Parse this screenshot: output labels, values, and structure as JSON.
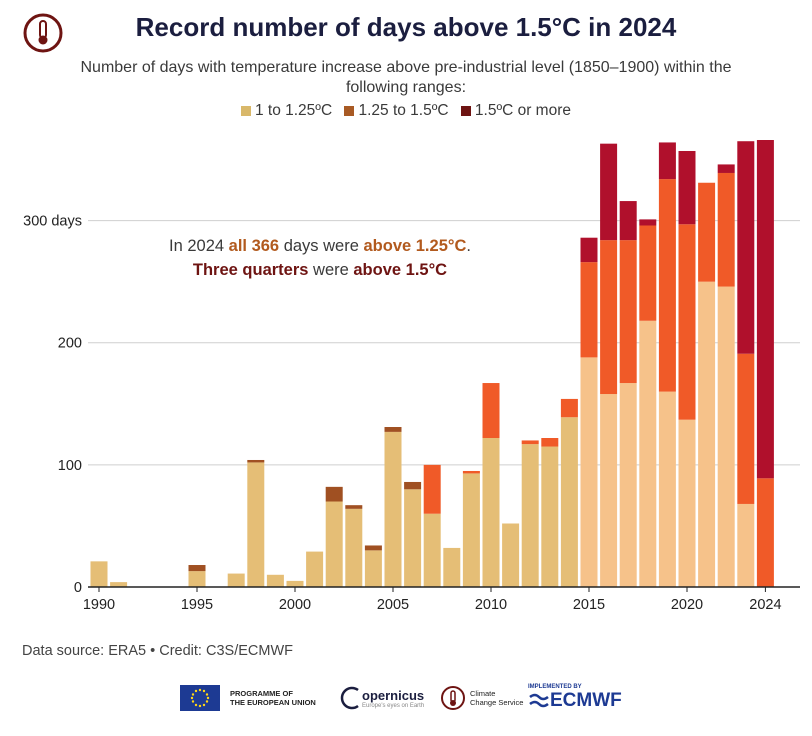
{
  "title": "Record number of days above 1.5°C in 2024",
  "subtitle": "Number of days with temperature increase above pre-industrial level (1850–1900) within the following ranges:",
  "legend": [
    {
      "label": "1 to 1.25ºC",
      "color": "#d9b86a"
    },
    {
      "label": "1.25 to 1.5ºC",
      "color": "#a85a24"
    },
    {
      "label": "1.5ºC or more",
      "color": "#6e1412"
    }
  ],
  "annotation": {
    "line1_prefix": "In 2024 ",
    "line1_bold1": "all 366",
    "line1_mid": " days were ",
    "line1_bold2": "above 1.25°C",
    "line1_end": ".",
    "line2_bold1": "Three quarters",
    "line2_mid": " were ",
    "line2_bold2": "above 1.5°C"
  },
  "footer": {
    "source": "Data source: ERA5 • Credit: C3S/ECMWF",
    "eu_label_1": "PROGRAMME OF",
    "eu_label_2": "THE EUROPEAN UNION",
    "copernicus": "opernicus",
    "copernicus_tag": "Europe's eyes on Earth",
    "c3s_1": "Climate",
    "c3s_2": "Change Service",
    "ecmwf_top": "IMPLEMENTED BY",
    "ecmwf": "ECMWF"
  },
  "colors": {
    "low_bar": "#f6c28a",
    "mid_bar": "#f05a28",
    "high_bar": "#b0102c",
    "early_low": "#e5be76",
    "early_mid": "#a05022"
  },
  "chart_data": {
    "type": "bar",
    "stacked": true,
    "ylim": [
      0,
      366
    ],
    "yticks": [
      0,
      100,
      200,
      300
    ],
    "ytick_labels": [
      "0",
      "100",
      "200",
      "300 days"
    ],
    "xtick_labels": [
      "1990",
      "1995",
      "2000",
      "2005",
      "2010",
      "2015",
      "2020",
      "2024"
    ],
    "x": [
      1990,
      1991,
      1992,
      1993,
      1994,
      1995,
      1996,
      1997,
      1998,
      1999,
      2000,
      2001,
      2002,
      2003,
      2004,
      2005,
      2006,
      2007,
      2008,
      2009,
      2010,
      2011,
      2012,
      2013,
      2014,
      2015,
      2016,
      2017,
      2018,
      2019,
      2020,
      2021,
      2022,
      2023,
      2024
    ],
    "series": [
      {
        "name": "1 to 1.25ºC",
        "values": [
          21,
          4,
          0,
          0,
          0,
          13,
          0,
          11,
          102,
          10,
          5,
          29,
          70,
          64,
          30,
          127,
          80,
          60,
          32,
          93,
          122,
          52,
          117,
          115,
          139,
          188,
          158,
          167,
          218,
          160,
          137,
          250,
          246,
          68,
          0
        ]
      },
      {
        "name": "1.25 to 1.5ºC",
        "values": [
          0,
          0,
          0,
          0,
          0,
          5,
          0,
          0,
          2,
          0,
          0,
          0,
          12,
          3,
          4,
          4,
          6,
          40,
          0,
          2,
          45,
          0,
          3,
          7,
          15,
          78,
          126,
          117,
          78,
          174,
          160,
          81,
          93,
          123,
          89
        ]
      },
      {
        "name": "1.5ºC or more",
        "values": [
          0,
          0,
          0,
          0,
          0,
          0,
          0,
          0,
          0,
          0,
          0,
          0,
          0,
          0,
          0,
          0,
          0,
          0,
          0,
          0,
          0,
          0,
          0,
          0,
          0,
          20,
          79,
          32,
          5,
          30,
          60,
          0,
          7,
          174,
          277
        ]
      }
    ]
  }
}
